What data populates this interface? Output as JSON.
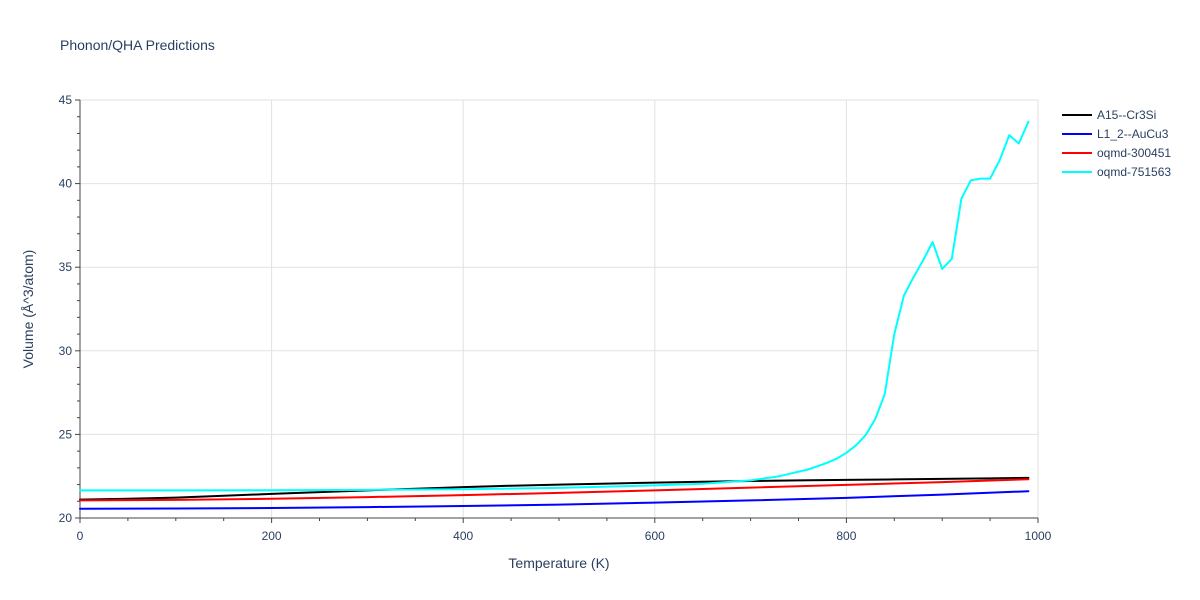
{
  "chart_data": {
    "type": "line",
    "title": "Phonon/QHA Predictions",
    "xlabel": "Temperature (K)",
    "ylabel": "Volume (Å^3/atom)",
    "xlim": [
      0,
      1000
    ],
    "ylim": [
      20,
      45
    ],
    "xticks": [
      0,
      200,
      400,
      600,
      800,
      1000
    ],
    "yticks": [
      20,
      25,
      30,
      35,
      40,
      45
    ],
    "grid": true,
    "legend_position": "top-right",
    "series": [
      {
        "name": "A15--Cr3Si",
        "color": "#000000",
        "x": [
          0,
          50,
          100,
          150,
          200,
          250,
          300,
          350,
          400,
          450,
          500,
          550,
          600,
          650,
          700,
          750,
          800,
          850,
          900,
          950,
          990
        ],
        "y": [
          21.1,
          21.15,
          21.22,
          21.33,
          21.44,
          21.55,
          21.65,
          21.75,
          21.85,
          21.93,
          22.0,
          22.06,
          22.12,
          22.17,
          22.21,
          22.25,
          22.28,
          22.31,
          22.34,
          22.37,
          22.4
        ]
      },
      {
        "name": "L1_2--AuCu3",
        "color": "#0000ff",
        "x": [
          0,
          100,
          200,
          300,
          400,
          500,
          600,
          700,
          800,
          900,
          990
        ],
        "y": [
          20.55,
          20.57,
          20.6,
          20.65,
          20.72,
          20.8,
          20.92,
          21.05,
          21.2,
          21.4,
          21.6
        ]
      },
      {
        "name": "oqmd-300451",
        "color": "#ff0000",
        "x": [
          0,
          100,
          200,
          300,
          400,
          500,
          600,
          700,
          800,
          900,
          990
        ],
        "y": [
          21.05,
          21.08,
          21.15,
          21.25,
          21.37,
          21.5,
          21.65,
          21.82,
          21.98,
          22.15,
          22.32
        ]
      },
      {
        "name": "oqmd-751563",
        "color": "#00ffff",
        "x": [
          0,
          100,
          200,
          300,
          400,
          500,
          600,
          650,
          700,
          730,
          760,
          780,
          790,
          800,
          810,
          820,
          830,
          840,
          850,
          860,
          870,
          880,
          890,
          900,
          910,
          920,
          930,
          940,
          950,
          960,
          970,
          980,
          990
        ],
        "y": [
          21.65,
          21.65,
          21.66,
          21.68,
          21.72,
          21.8,
          21.95,
          22.05,
          22.25,
          22.5,
          22.9,
          23.3,
          23.55,
          23.9,
          24.35,
          24.95,
          25.9,
          27.4,
          31.0,
          33.3,
          34.4,
          35.4,
          36.5,
          34.9,
          35.5,
          39.1,
          40.2,
          40.3,
          40.3,
          41.4,
          42.9,
          42.4,
          43.7
        ]
      }
    ]
  }
}
